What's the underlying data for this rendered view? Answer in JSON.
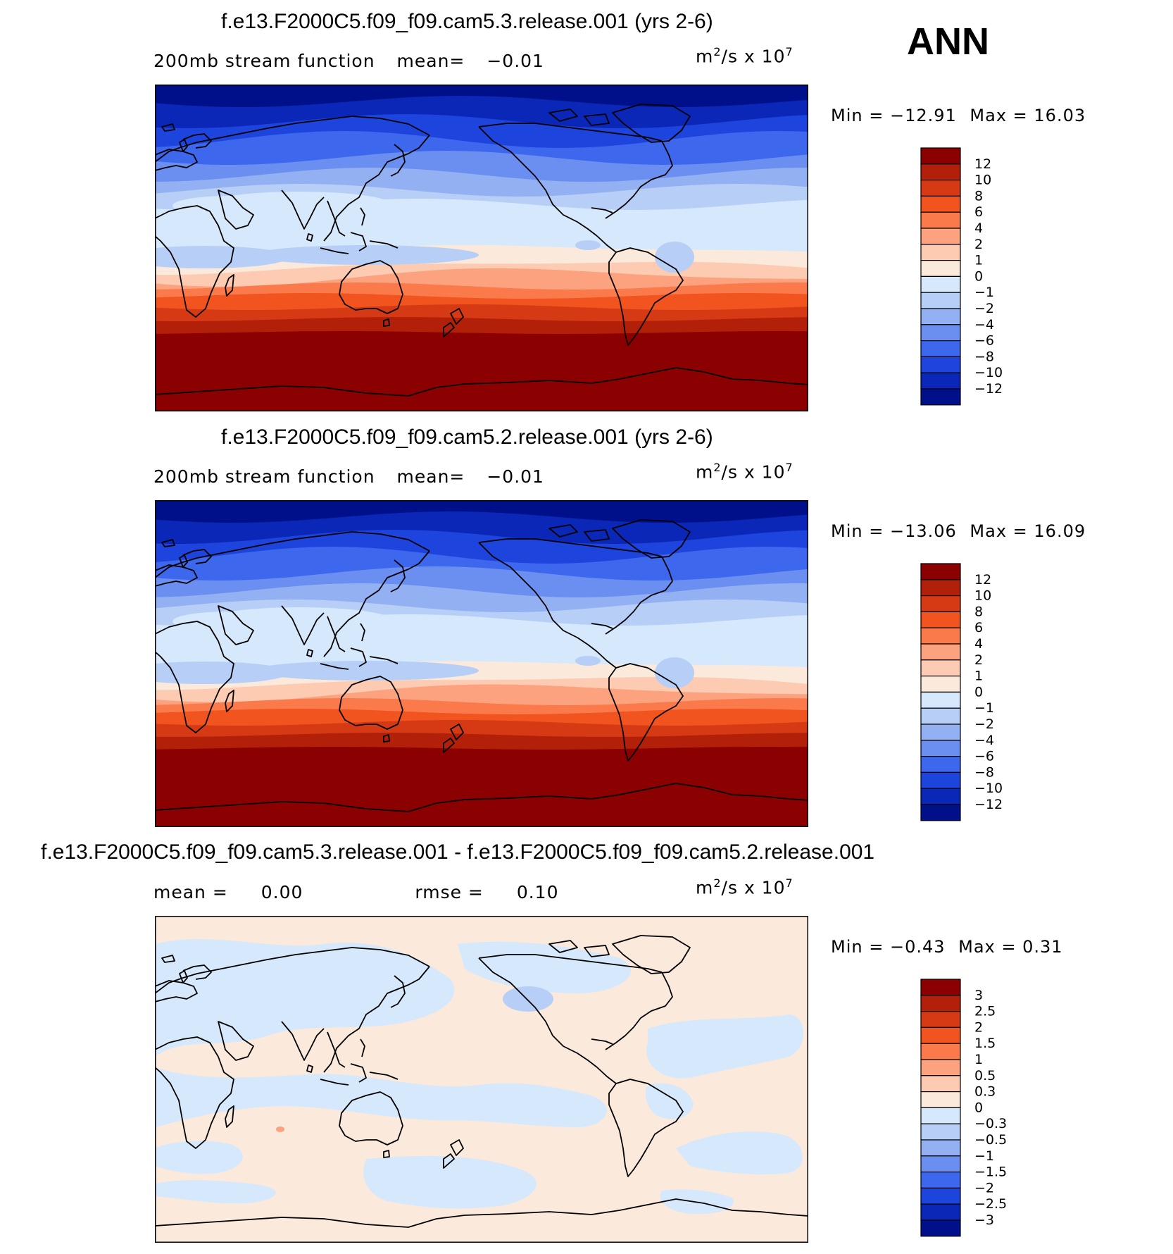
{
  "season": "ANN",
  "chart_data": [
    {
      "type": "heatmap",
      "title": "f.e13.F2000C5.f09_f09.cam5.3.release.001 (yrs 2-6)",
      "variable_label": "200mb stream function",
      "stat_label": "mean=",
      "stat_value": "−0.01",
      "units_base": "m",
      "units_exp": "2",
      "units_mid": "/s x 10",
      "units_exp2": "7",
      "min_label": "Min = −12.91",
      "max_label": "Max =   16.03",
      "min_value": -12.91,
      "max_value": 16.03,
      "colorbar_levels": [
        12,
        10,
        8,
        6,
        4,
        2,
        1,
        0,
        -1,
        -2,
        -4,
        -6,
        -8,
        -10,
        -12
      ],
      "colorbar_tick_labels": [
        "12",
        "10",
        "8",
        "6",
        "4",
        "2",
        "1",
        "0",
        "−1",
        "−2",
        "−4",
        "−6",
        "−8",
        "−10",
        "−12"
      ],
      "colorbar_colors": [
        "#8b0000",
        "#b2200a",
        "#d63a15",
        "#f2541f",
        "#fb7a4c",
        "#fca27f",
        "#fdcab2",
        "#fbe9dc",
        "#d6e8fb",
        "#b7cff7",
        "#93b1f2",
        "#6b8ff0",
        "#3d67ec",
        "#1d44dc",
        "#0a27b7",
        "#00108a"
      ],
      "x_range": [
        "0E",
        "360E"
      ],
      "y_range": [
        "90S",
        "90N"
      ]
    },
    {
      "type": "heatmap",
      "title": "f.e13.F2000C5.f09_f09.cam5.2.release.001 (yrs 2-6)",
      "variable_label": "200mb stream function",
      "stat_label": "mean=",
      "stat_value": "−0.01",
      "units_base": "m",
      "units_exp": "2",
      "units_mid": "/s x 10",
      "units_exp2": "7",
      "min_label": "Min = −13.06",
      "max_label": "Max =   16.09",
      "min_value": -13.06,
      "max_value": 16.09,
      "colorbar_levels": [
        12,
        10,
        8,
        6,
        4,
        2,
        1,
        0,
        -1,
        -2,
        -4,
        -6,
        -8,
        -10,
        -12
      ],
      "colorbar_tick_labels": [
        "12",
        "10",
        "8",
        "6",
        "4",
        "2",
        "1",
        "0",
        "−1",
        "−2",
        "−4",
        "−6",
        "−8",
        "−10",
        "−12"
      ],
      "colorbar_colors": [
        "#8b0000",
        "#b2200a",
        "#d63a15",
        "#f2541f",
        "#fb7a4c",
        "#fca27f",
        "#fdcab2",
        "#fbe9dc",
        "#d6e8fb",
        "#b7cff7",
        "#93b1f2",
        "#6b8ff0",
        "#3d67ec",
        "#1d44dc",
        "#0a27b7",
        "#00108a"
      ],
      "x_range": [
        "0E",
        "360E"
      ],
      "y_range": [
        "90S",
        "90N"
      ]
    },
    {
      "type": "heatmap",
      "title": "f.e13.F2000C5.f09_f09.cam5.3.release.001 - f.e13.F2000C5.f09_f09.cam5.2.release.001",
      "mean_label": "mean =",
      "mean_value": "0.00",
      "rmse_label": "rmse =",
      "rmse_value": "0.10",
      "units_base": "m",
      "units_exp": "2",
      "units_mid": "/s x 10",
      "units_exp2": "7",
      "min_label": "Min =   −0.43",
      "max_label": "Max =    0.31",
      "min_value": -0.43,
      "max_value": 0.31,
      "colorbar_levels": [
        3,
        2.5,
        2,
        1.5,
        1,
        0.5,
        0.3,
        0,
        -0.3,
        -0.5,
        -1,
        -1.5,
        -2,
        -2.5,
        -3
      ],
      "colorbar_tick_labels": [
        "3",
        "2.5",
        "2",
        "1.5",
        "1",
        "0.5",
        "0.3",
        "0",
        "−0.3",
        "−0.5",
        "−1",
        "−1.5",
        "−2",
        "−2.5",
        "−3"
      ],
      "colorbar_colors": [
        "#8b0000",
        "#b2200a",
        "#d63a15",
        "#f2541f",
        "#fb7a4c",
        "#fca27f",
        "#fdcab2",
        "#fbe9dc",
        "#d6e8fb",
        "#b7cff7",
        "#93b1f2",
        "#6b8ff0",
        "#3d67ec",
        "#1d44dc",
        "#0a27b7",
        "#00108a"
      ],
      "x_range": [
        "0E",
        "360E"
      ],
      "y_range": [
        "90S",
        "90N"
      ]
    }
  ]
}
